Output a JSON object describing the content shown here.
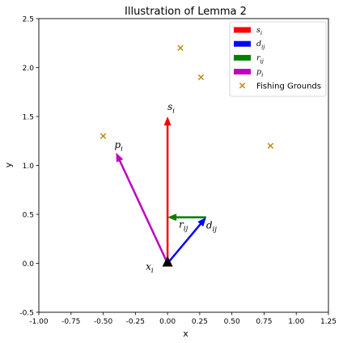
{
  "chart_data": {
    "type": "vector",
    "title": "Illustration of Lemma 2",
    "xlabel": "x",
    "ylabel": "y",
    "xlim": [
      -1.0,
      1.25
    ],
    "ylim": [
      -0.5,
      2.5
    ],
    "xticks": [
      "-1.00",
      "-0.75",
      "-0.50",
      "-0.25",
      "0.00",
      "0.25",
      "0.50",
      "0.75",
      "1.00",
      "1.25"
    ],
    "xtick_values": [
      -1.0,
      -0.75,
      -0.5,
      -0.25,
      0.0,
      0.25,
      0.5,
      0.75,
      1.0,
      1.25
    ],
    "yticks": [
      "-0.5",
      "0.0",
      "0.5",
      "1.0",
      "1.5",
      "2.0",
      "2.5"
    ],
    "ytick_values": [
      -0.5,
      0.0,
      0.5,
      1.0,
      1.5,
      2.0,
      2.5
    ],
    "grid": false,
    "legend_position": "top-right",
    "origin": {
      "x": 0.0,
      "y": 0.0,
      "label": "x_i",
      "color": "#000000"
    },
    "vectors": [
      {
        "key": "s",
        "label": "s_i",
        "color": "#ff0000",
        "start": [
          0.0,
          0.0
        ],
        "end": [
          0.0,
          1.5
        ]
      },
      {
        "key": "d",
        "label": "d_ij",
        "color": "#0000ff",
        "start": [
          0.0,
          0.0
        ],
        "end": [
          0.3,
          0.47
        ]
      },
      {
        "key": "r",
        "label": "r_ij",
        "color": "#008000",
        "start": [
          0.3,
          0.47
        ],
        "end": [
          0.0,
          0.47
        ]
      },
      {
        "key": "p",
        "label": "p_i",
        "color": "#bf00bf",
        "start": [
          0.0,
          0.0
        ],
        "end": [
          -0.4,
          1.13
        ]
      }
    ],
    "fishing_grounds": {
      "label": "Fishing Grounds",
      "marker": "x",
      "color": "#b8860b",
      "points": [
        {
          "x": 0.1,
          "y": 2.2
        },
        {
          "x": 0.26,
          "y": 1.9
        },
        {
          "x": -0.5,
          "y": 1.3
        },
        {
          "x": 0.8,
          "y": 1.2
        }
      ]
    },
    "legend": [
      {
        "label": "s_i",
        "color": "#ff0000",
        "kind": "arrow"
      },
      {
        "label": "d_ij",
        "color": "#0000ff",
        "kind": "arrow"
      },
      {
        "label": "r_ij",
        "color": "#008000",
        "kind": "arrow"
      },
      {
        "label": "p_i",
        "color": "#bf00bf",
        "kind": "arrow"
      },
      {
        "label": "Fishing Grounds",
        "color": "#b8860b",
        "kind": "x"
      }
    ]
  }
}
